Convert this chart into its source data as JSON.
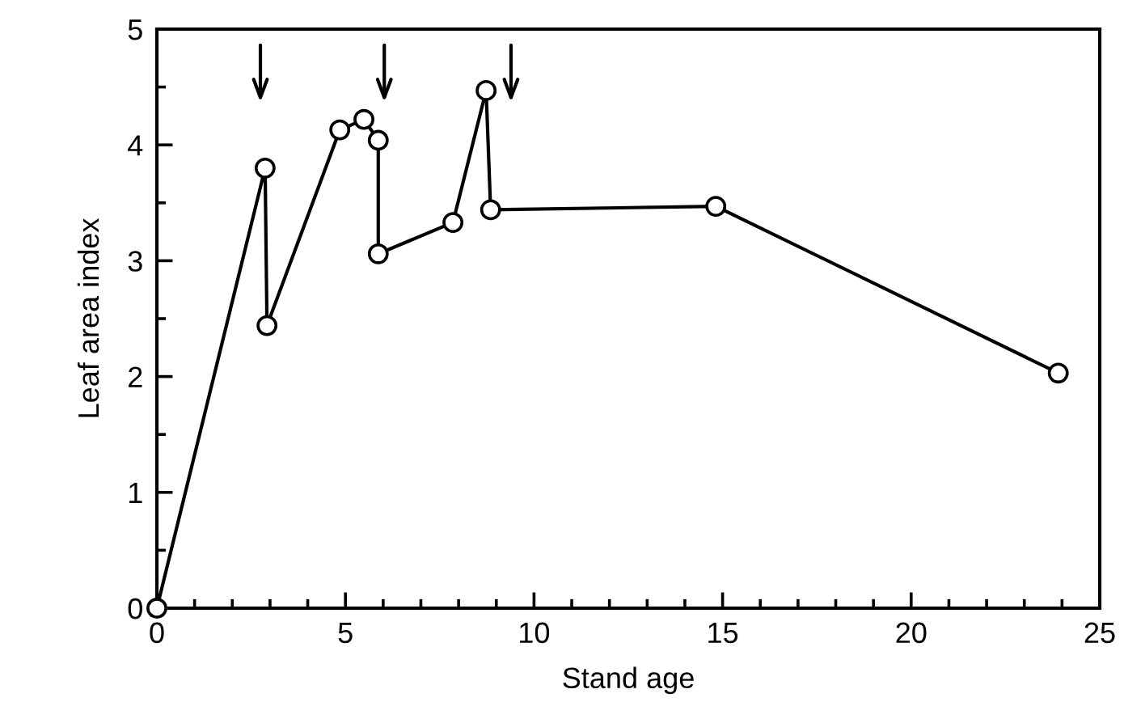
{
  "chart_data": {
    "type": "line",
    "xlabel": "Stand age",
    "ylabel": "Leaf area index",
    "x": [
      0,
      2.87,
      2.92,
      4.85,
      5.49,
      5.87,
      5.87,
      7.85,
      8.73,
      8.85,
      14.82,
      23.9
    ],
    "series": [
      {
        "color": "#000000",
        "values": [
          0,
          3.8,
          2.44,
          4.13,
          4.22,
          4.04,
          3.06,
          3.33,
          4.47,
          3.44,
          3.47,
          2.03
        ]
      }
    ],
    "marker": "circle",
    "line_style": "solid",
    "grid": false,
    "legend": false,
    "xlim": [
      0,
      25
    ],
    "ylim": [
      0,
      5
    ],
    "xticks": [
      0,
      {
        "value": 1,
        "label": null
      },
      {
        "value": 2,
        "label": null
      },
      {
        "value": 3,
        "label": null
      },
      {
        "value": 4,
        "label": null
      },
      5,
      {
        "value": 6,
        "label": null
      },
      {
        "value": 7,
        "label": null
      },
      {
        "value": 8,
        "label": null
      },
      {
        "value": 9,
        "label": null
      },
      10,
      {
        "value": 11,
        "label": null
      },
      {
        "value": 12,
        "label": null
      },
      {
        "value": 13,
        "label": null
      },
      {
        "value": 14,
        "label": null
      },
      15,
      {
        "value": 16,
        "label": null
      },
      {
        "value": 17,
        "label": null
      },
      {
        "value": 18,
        "label": null
      },
      {
        "value": 19,
        "label": null
      },
      20,
      {
        "value": 21,
        "label": null
      },
      {
        "value": 22,
        "label": null
      },
      {
        "value": 23,
        "label": null
      },
      {
        "value": 24,
        "label": null
      },
      25
    ],
    "yticks": [
      0,
      {
        "value": 0.5,
        "label": null
      },
      1,
      {
        "value": 1.5,
        "label": null
      },
      2,
      {
        "value": 2.5,
        "label": null
      },
      3,
      {
        "value": 3.5,
        "label": null
      },
      4,
      {
        "value": 4.5,
        "label": null
      },
      5
    ]
  }
}
